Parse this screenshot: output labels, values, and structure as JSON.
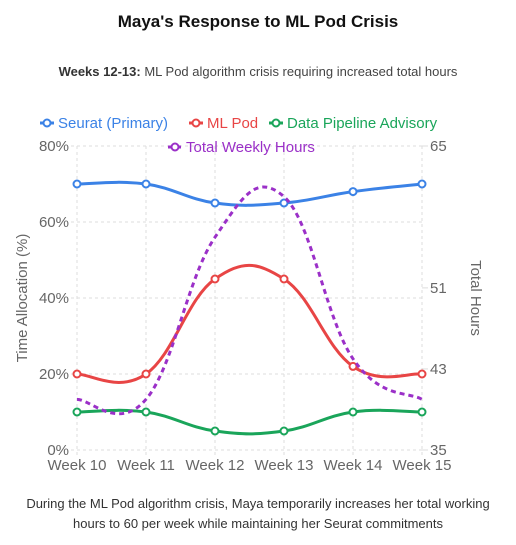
{
  "title": "Maya's Response to ML Pod Crisis",
  "subtitle": {
    "bold": "Weeks 12-13:",
    "text": " ML Pod algorithm crisis requiring increased total hours"
  },
  "caption": "During the ML Pod algorithm crisis, Maya temporarily increases her total working hours to 60 per week while maintaining her Seurat commitments",
  "chart_data": {
    "type": "line",
    "categories": [
      "Week 10",
      "Week 11",
      "Week 12",
      "Week 13",
      "Week 14",
      "Week 15"
    ],
    "series": [
      {
        "name": "Seurat (Primary)",
        "axis": "left",
        "color": "#3b82e6",
        "dash": false,
        "values": [
          70,
          70,
          65,
          65,
          68,
          70
        ]
      },
      {
        "name": "ML Pod",
        "axis": "left",
        "color": "#e84545",
        "dash": false,
        "values": [
          20,
          20,
          45,
          45,
          22,
          20
        ]
      },
      {
        "name": "Data Pipeline Advisory",
        "axis": "left",
        "color": "#1aa55a",
        "dash": false,
        "values": [
          10,
          10,
          5,
          5,
          10,
          10
        ]
      },
      {
        "name": "Total Weekly Hours",
        "axis": "right",
        "color": "#9b30c8",
        "dash": true,
        "values": [
          40,
          40,
          56,
          60,
          44,
          40
        ]
      }
    ],
    "y_left": {
      "label": "Time Allocation (%)",
      "min": 0,
      "max": 80,
      "ticks": [
        "0%",
        "20%",
        "40%",
        "60%",
        "80%"
      ],
      "tick_values": [
        0,
        20,
        40,
        60,
        80
      ]
    },
    "y_right": {
      "label": "Total Hours",
      "min": 35,
      "max": 65,
      "ticks": [
        "35",
        "43",
        "51",
        "65"
      ],
      "tick_values": [
        35,
        43,
        51,
        65
      ]
    },
    "grid": true,
    "legend_position": "top"
  }
}
